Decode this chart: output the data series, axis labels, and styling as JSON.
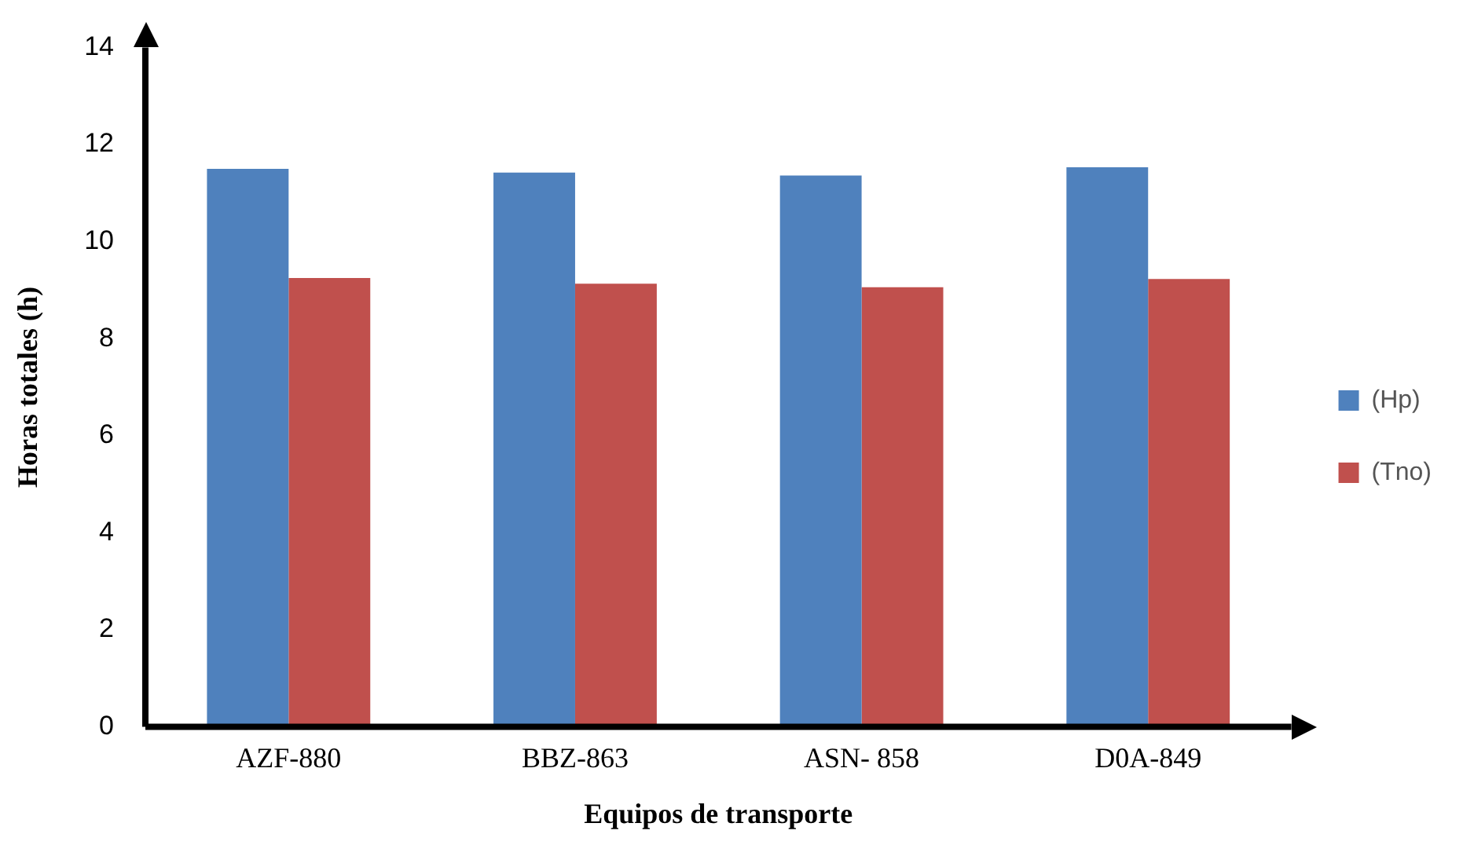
{
  "chart_data": {
    "type": "bar",
    "xlabel": "Equipos de transporte",
    "ylabel": "Horas totales (h)",
    "categories": [
      "AZF-880",
      "BBZ-863",
      "ASN- 858",
      "D0A-849"
    ],
    "series": [
      {
        "name": "(Hp)",
        "color": "#4f81bd",
        "values": [
          11.5,
          11.42,
          11.36,
          11.53
        ]
      },
      {
        "name": "(Tno)",
        "color": "#c0504d",
        "values": [
          9.25,
          9.13,
          9.06,
          9.23
        ]
      }
    ],
    "ylim": [
      0,
      14
    ],
    "yticks": [
      0,
      2,
      4,
      6,
      8,
      10,
      12,
      14
    ],
    "grid": false,
    "legend": "right"
  }
}
